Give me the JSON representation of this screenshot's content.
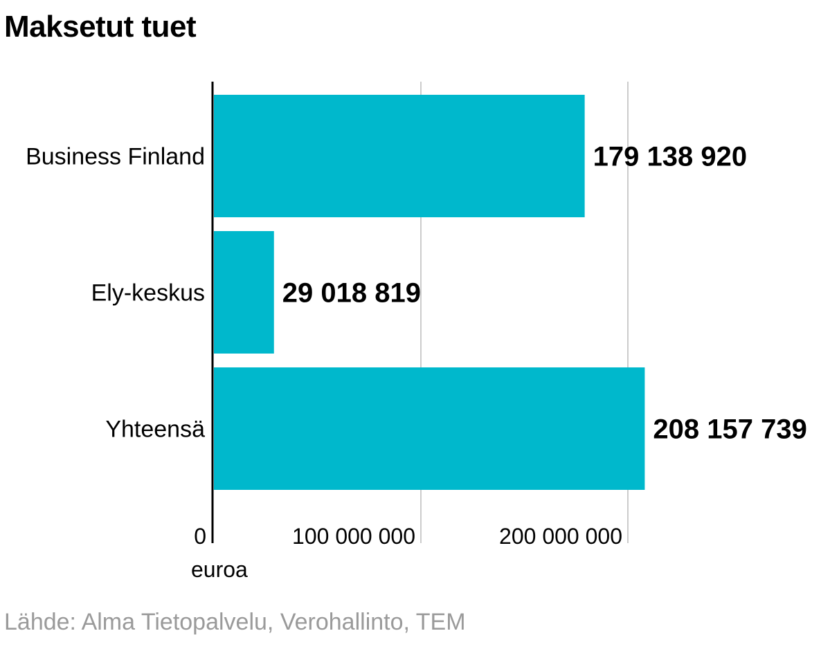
{
  "chart_data": {
    "type": "bar",
    "orientation": "horizontal",
    "title": "Maksetut tuet",
    "categories": [
      "Business Finland",
      "Ely-keskus",
      "Yhteensä"
    ],
    "values": [
      179138920,
      29018819,
      208157739
    ],
    "value_labels": [
      "179 138 920",
      "29 018 819",
      "208 157 739"
    ],
    "xlabel": "euroa",
    "x_ticks": [
      {
        "value": 0,
        "label": "0"
      },
      {
        "value": 100000000,
        "label": "100 000 000"
      },
      {
        "value": 200000000,
        "label": "200 000 000"
      }
    ],
    "xlim": [
      0,
      208157739
    ],
    "grid": true,
    "bar_color": "#00b8cc"
  },
  "footer": {
    "source": "Lähde: Alma Tietopalvelu, Verohallinto, TEM"
  }
}
